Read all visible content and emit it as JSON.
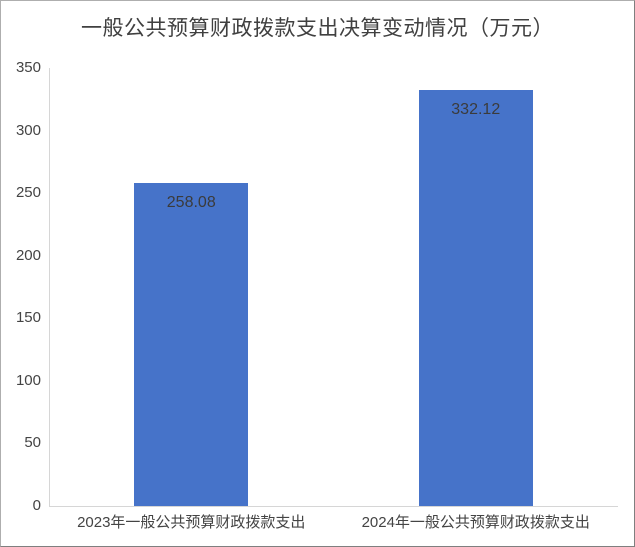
{
  "chart_data": {
    "type": "bar",
    "title": "一般公共预算财政拨款支出决算变动情况（万元）",
    "categories": [
      "2023年一般公共预算财政拨款支出",
      "2024年一般公共预算财政拨款支出"
    ],
    "values": [
      258.08,
      332.12
    ],
    "data_labels": [
      "258.08",
      "332.12"
    ],
    "xlabel": "",
    "ylabel": "",
    "ylim": [
      0,
      350
    ],
    "yticks": [
      0,
      50,
      100,
      150,
      200,
      250,
      300,
      350
    ],
    "grid": false,
    "legend": "none",
    "data_label_position": "inside-top",
    "bar_color": "#4673C9",
    "title_color": "#404040",
    "tick_label_color": "#444444",
    "data_label_color": "#3b3b3b",
    "axis_line_color": "#d6d6d6"
  }
}
